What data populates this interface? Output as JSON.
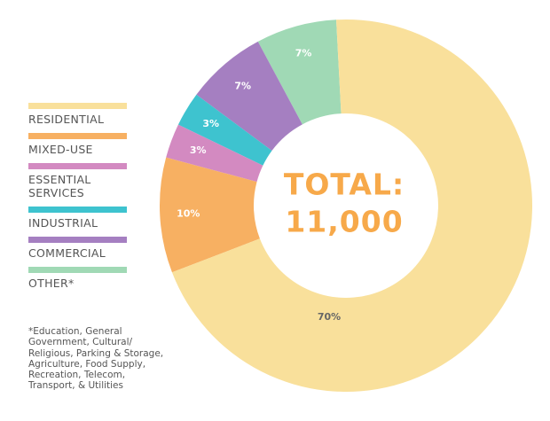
{
  "chart_data": {
    "type": "donut",
    "categories": [
      "RESIDENTIAL",
      "MIXED-USE",
      "ESSENTIAL SERVICES",
      "INDUSTRIAL",
      "COMMERCIAL",
      "OTHER*"
    ],
    "values": [
      70,
      10,
      3,
      3,
      7,
      7
    ],
    "value_labels": [
      "70%",
      "10%",
      "3%",
      "3%",
      "7%",
      "7%"
    ],
    "colors": [
      "#f9e09b",
      "#f7b062",
      "#d38ac1",
      "#3ec3cf",
      "#a57fc1",
      "#a0d9b5"
    ],
    "center_text": [
      "TOTAL:",
      "11,000"
    ],
    "note": [
      "*Education, General",
      "Government, Cultural/",
      "Religious, Parking & Storage,",
      "Agriculture, Food Supply,",
      "Recreation, Telecom,",
      "Transport, & Utilities"
    ]
  }
}
